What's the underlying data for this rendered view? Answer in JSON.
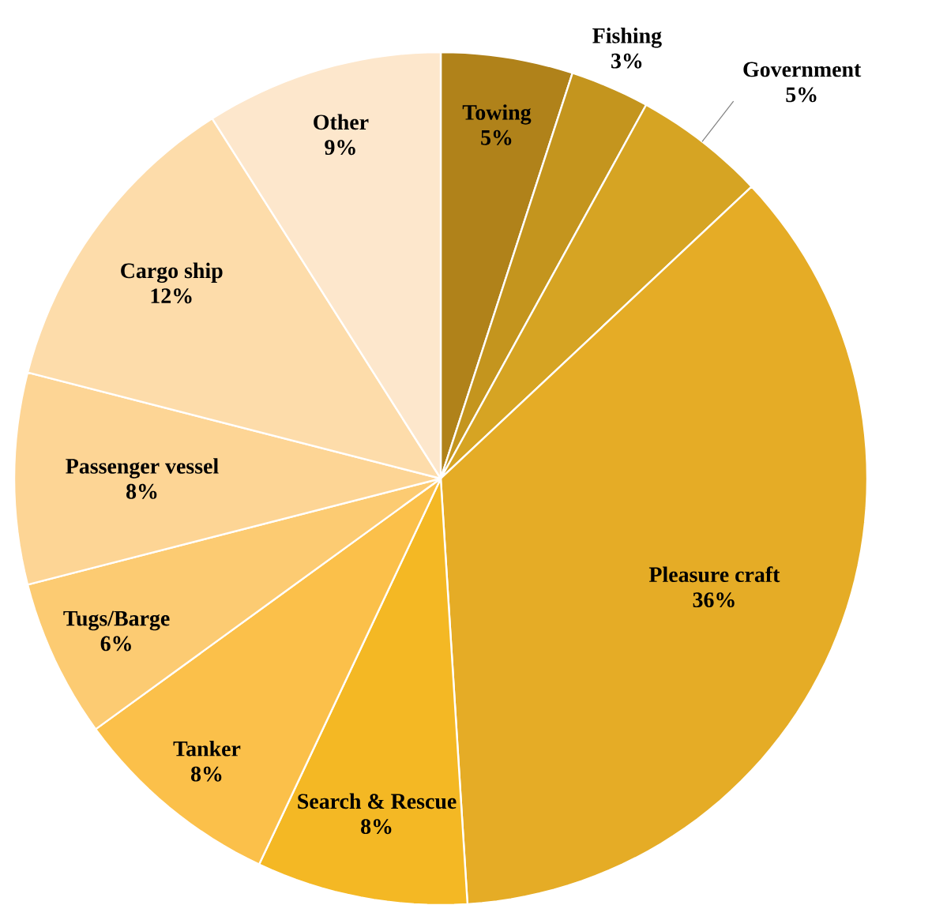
{
  "chart_data": {
    "type": "pie",
    "categories": [
      "Towing",
      "Fishing",
      "Government",
      "Pleasure craft",
      "Search & Rescue",
      "Tanker",
      "Tugs/Barge",
      "Passenger vessel",
      "Cargo ship",
      "Other"
    ],
    "values": [
      5,
      3,
      5,
      36,
      8,
      8,
      6,
      8,
      12,
      9
    ],
    "value_labels": [
      "5%",
      "3%",
      "5%",
      "36%",
      "8%",
      "8%",
      "6%",
      "8%",
      "12%",
      "9%"
    ],
    "colors": [
      "#b0821a",
      "#c4951e",
      "#d6a423",
      "#e5ac26",
      "#f4b824",
      "#fbc04a",
      "#fccb72",
      "#fdd595",
      "#fddcaa",
      "#fde7cc"
    ]
  }
}
